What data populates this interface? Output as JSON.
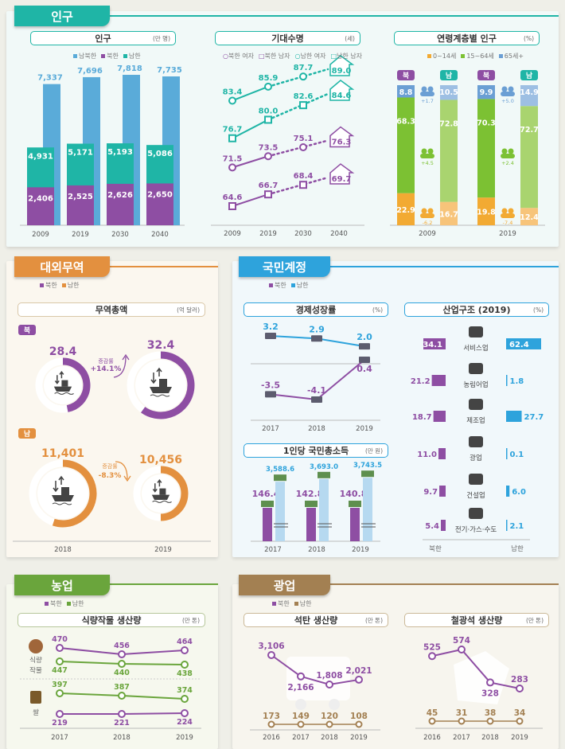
{
  "colors": {
    "teal": "#1fb5a6",
    "teal_dark": "#17a392",
    "purple": "#8e4ea3",
    "blue": "#5aabd9",
    "orange": "#e3903f",
    "sky": "#2ea3dc",
    "green": "#6aa53c",
    "brown": "#a38052",
    "age_child": "#f2aa33",
    "age_work_n": "#7cc133",
    "age_old": "#6b9fd4",
    "age_child_s": "#f7c47a",
    "age_work_s": "#a9d46f",
    "age_old_s": "#9dbfe3"
  },
  "population_section": {
    "tab": "인구",
    "population": {
      "title": "인구",
      "unit": "(만 명)",
      "legend": [
        "남북한",
        "북한",
        "남한"
      ]
    },
    "life": {
      "title": "기대수명",
      "unit": "(세)",
      "legend": [
        "북한 여자",
        "북한 남자",
        "남한 여자",
        "남한 남자"
      ]
    },
    "age": {
      "title": "연령계층별 인구",
      "unit": "(%)",
      "legend": [
        "0~14세",
        "15~64세",
        "65세+"
      ],
      "north_badge": "북",
      "south_badge": "남"
    }
  },
  "trade_section": {
    "tab": "대외무역",
    "legend": [
      "북한",
      "남한"
    ],
    "title": "무역총액",
    "unit": "(억 달러)",
    "north_badge": "북",
    "south_badge": "남",
    "rate_label": "증감률",
    "north_rate": "+14.1%",
    "south_rate": "-8.3%"
  },
  "national_section": {
    "tab": "국민계정",
    "legend": [
      "북한",
      "남한"
    ],
    "growth": {
      "title": "경제성장률",
      "unit": "(%)"
    },
    "gni": {
      "title": "1인당 국민총소득",
      "unit": "(만 원)"
    },
    "industry": {
      "title": "산업구조 (2019)",
      "unit": "(%)",
      "north_label": "북한",
      "south_label": "남한"
    }
  },
  "agri_section": {
    "tab": "농업",
    "legend": [
      "북한",
      "남한"
    ],
    "title": "식량작물 생산량",
    "unit": "(만 톤)",
    "row_labels": [
      "식량\n작물",
      "쌀"
    ]
  },
  "mining_section": {
    "tab": "광업",
    "legend": [
      "북한",
      "남한"
    ],
    "coal": {
      "title": "석탄 생산량",
      "unit": "(만 톤)"
    },
    "iron": {
      "title": "철광석 생산량",
      "unit": "(만 톤)"
    }
  },
  "chart_data": [
    {
      "id": "population",
      "type": "bar",
      "title": "인구",
      "unit": "만 명",
      "categories": [
        "2009",
        "2019",
        "2030",
        "2040"
      ],
      "series": [
        {
          "name": "남북한",
          "values": [
            7337,
            7696,
            7818,
            7735
          ],
          "labels": [
            "7,337",
            "7,696",
            "7,818",
            "7,735"
          ]
        },
        {
          "name": "남한",
          "values": [
            4931,
            5171,
            5193,
            5086
          ],
          "labels": [
            "4,931",
            "5,171",
            "5,193",
            "5,086"
          ]
        },
        {
          "name": "북한",
          "values": [
            2406,
            2525,
            2626,
            2650
          ],
          "labels": [
            "2,406",
            "2,525",
            "2,626",
            "2,650"
          ]
        }
      ]
    },
    {
      "id": "life_expectancy",
      "type": "line",
      "title": "기대수명",
      "unit": "세",
      "categories": [
        "2009",
        "2019",
        "2030",
        "2040"
      ],
      "series": [
        {
          "name": "남한 여자",
          "values": [
            83.4,
            85.9,
            87.7,
            89.0
          ],
          "labels": [
            "83.4",
            "85.9",
            "87.7",
            "89.0"
          ]
        },
        {
          "name": "남한 남자",
          "values": [
            76.7,
            80.0,
            82.6,
            84.6
          ],
          "labels": [
            "76.7",
            "80.0",
            "82.6",
            "84.6"
          ]
        },
        {
          "name": "북한 여자",
          "values": [
            71.5,
            73.5,
            75.1,
            76.3
          ],
          "labels": [
            "71.5",
            "73.5",
            "75.1",
            "76.3"
          ]
        },
        {
          "name": "북한 남자",
          "values": [
            64.6,
            66.7,
            68.4,
            69.7
          ],
          "labels": [
            "64.6",
            "66.7",
            "68.4",
            "69.7"
          ]
        }
      ]
    },
    {
      "id": "age_structure",
      "type": "bar",
      "title": "연령계층별 인구",
      "unit": "%",
      "categories": [
        "2009",
        "2019"
      ],
      "groups": [
        {
          "year": "2009",
          "north": {
            "0~14세": 22.9,
            "15~64세": 68.3,
            "65세+": 8.8
          },
          "south": {
            "0~14세": 16.7,
            "15~64세": 72.8,
            "65세+": 10.5
          },
          "diff": {
            "65세+": "+1.7",
            "15~64세": "+4.5",
            "0~14세": "-6.2"
          }
        },
        {
          "year": "2019",
          "north": {
            "0~14세": 19.8,
            "15~64세": 70.3,
            "65세+": 9.9
          },
          "south": {
            "0~14세": 12.4,
            "15~64세": 72.7,
            "65세+": 14.9
          },
          "diff": {
            "65세+": "+5.0",
            "15~64세": "+2.4",
            "0~14세": "-7.4"
          }
        }
      ]
    },
    {
      "id": "trade_total",
      "type": "pie",
      "title": "무역총액",
      "unit": "억 달러",
      "categories": [
        "2018",
        "2019"
      ],
      "series": [
        {
          "name": "북한",
          "values": [
            28.4,
            32.4
          ],
          "labels": [
            "28.4",
            "32.4"
          ],
          "change": "+14.1%"
        },
        {
          "name": "남한",
          "values": [
            11401,
            10456
          ],
          "labels": [
            "11,401",
            "10,456"
          ],
          "change": "-8.3%"
        }
      ]
    },
    {
      "id": "growth_rate",
      "type": "line",
      "title": "경제성장률",
      "unit": "%",
      "categories": [
        "2017",
        "2018",
        "2019"
      ],
      "series": [
        {
          "name": "남한",
          "values": [
            3.2,
            2.9,
            2.0
          ],
          "labels": [
            "3.2",
            "2.9",
            "2.0"
          ]
        },
        {
          "name": "북한",
          "values": [
            -3.5,
            -4.1,
            0.4
          ],
          "labels": [
            "-3.5",
            "-4.1",
            "0.4"
          ]
        }
      ]
    },
    {
      "id": "gni_per_capita",
      "type": "bar",
      "title": "1인당 국민총소득",
      "unit": "만 원",
      "categories": [
        "2017",
        "2018",
        "2019"
      ],
      "series": [
        {
          "name": "북한",
          "values": [
            146.4,
            142.8,
            140.8
          ],
          "labels": [
            "146.4",
            "142.8",
            "140.8"
          ]
        },
        {
          "name": "남한",
          "values": [
            3588.6,
            3693.0,
            3743.5
          ],
          "labels": [
            "3,588.6",
            "3,693.0",
            "3,743.5"
          ]
        }
      ]
    },
    {
      "id": "industry_structure",
      "type": "bar",
      "title": "산업구조 (2019)",
      "unit": "%",
      "categories": [
        "서비스업",
        "농림어업",
        "제조업",
        "광업",
        "건설업",
        "전기·가스·수도"
      ],
      "series": [
        {
          "name": "북한",
          "values": [
            34.1,
            21.2,
            18.7,
            11.0,
            9.7,
            5.4
          ],
          "labels": [
            "34.1",
            "21.2",
            "18.7",
            "11.0",
            "9.7",
            "5.4"
          ]
        },
        {
          "name": "남한",
          "values": [
            62.4,
            1.8,
            27.7,
            0.1,
            6.0,
            2.1
          ],
          "labels": [
            "62.4",
            "1.8",
            "27.7",
            "0.1",
            "6.0",
            "2.1"
          ]
        }
      ]
    },
    {
      "id": "food_crops",
      "type": "line",
      "title": "식량작물 생산량",
      "unit": "만 톤",
      "categories": [
        "2017",
        "2018",
        "2019"
      ],
      "series": [
        {
          "name": "북한 식량작물",
          "values": [
            470,
            456,
            464
          ],
          "labels": [
            "470",
            "456",
            "464"
          ]
        },
        {
          "name": "남한 식량작물",
          "values": [
            447,
            440,
            438
          ],
          "labels": [
            "447",
            "440",
            "438"
          ]
        },
        {
          "name": "남한 쌀",
          "values": [
            397,
            387,
            374
          ],
          "labels": [
            "397",
            "387",
            "374"
          ]
        },
        {
          "name": "북한 쌀",
          "values": [
            219,
            221,
            224
          ],
          "labels": [
            "219",
            "221",
            "224"
          ]
        }
      ]
    },
    {
      "id": "coal",
      "type": "line",
      "title": "석탄 생산량",
      "unit": "만 톤",
      "categories": [
        "2016",
        "2017",
        "2018",
        "2019"
      ],
      "series": [
        {
          "name": "북한",
          "values": [
            3106,
            2166,
            1808,
            2021
          ],
          "labels": [
            "3,106",
            "2,166",
            "1,808",
            "2,021"
          ]
        },
        {
          "name": "남한",
          "values": [
            173,
            149,
            120,
            108
          ],
          "labels": [
            "173",
            "149",
            "120",
            "108"
          ]
        }
      ]
    },
    {
      "id": "iron_ore",
      "type": "line",
      "title": "철광석 생산량",
      "unit": "만 톤",
      "categories": [
        "2016",
        "2017",
        "2018",
        "2019"
      ],
      "series": [
        {
          "name": "북한",
          "values": [
            525,
            574,
            328,
            283
          ],
          "labels": [
            "525",
            "574",
            "328",
            "283"
          ]
        },
        {
          "name": "남한",
          "values": [
            45,
            31,
            38,
            34
          ],
          "labels": [
            "45",
            "31",
            "38",
            "34"
          ]
        }
      ]
    }
  ]
}
